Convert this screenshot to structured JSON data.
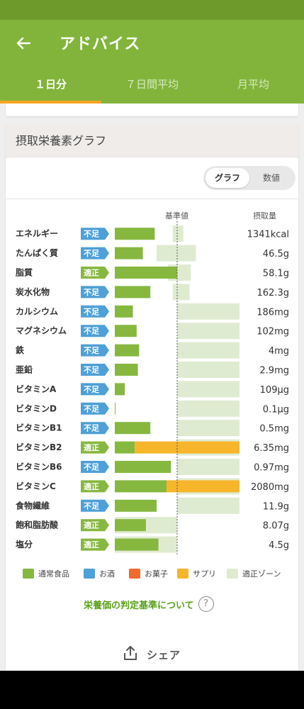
{
  "header": {
    "title": "アドバイス",
    "back_icon": "arrow-left-icon",
    "tabs": [
      {
        "label": "１日分",
        "active": true
      },
      {
        "label": "７日間平均",
        "active": false
      },
      {
        "label": "月平均",
        "active": false
      }
    ]
  },
  "card": {
    "title": "摂取栄養素グラフ",
    "toggle": {
      "options": [
        "グラフ",
        "数値"
      ],
      "selected": "グラフ"
    },
    "column_reference": "基準値",
    "column_intake": "摂取量"
  },
  "colors": {
    "regular_food": "#86b840",
    "alcohol": "#4ea0d8",
    "snacks": "#f06a2c",
    "supplement": "#f7b52c",
    "proper_zone": "#dfebd1",
    "status_shortage": "#4ea0d8",
    "status_proper": "#86b840"
  },
  "chart_data": {
    "type": "bar",
    "orientation": "horizontal",
    "reference_label": "基準値",
    "intake_label": "摂取量",
    "rows": [
      {
        "name": "エネルギー",
        "status": "不足",
        "food": 0.64,
        "supplement": 0,
        "zone": [
          0.93,
          1.1
        ],
        "intake": "1341kcal"
      },
      {
        "name": "たんぱく質",
        "status": "不足",
        "food": 0.45,
        "supplement": 0,
        "zone": [
          0.67,
          1.3
        ],
        "intake": "46.5g"
      },
      {
        "name": "脂質",
        "status": "適正",
        "food": 1.0,
        "supplement": 0,
        "zone": [
          0.85,
          1.22
        ],
        "intake": "58.1g"
      },
      {
        "name": "炭水化物",
        "status": "不足",
        "food": 0.57,
        "supplement": 0,
        "zone": [
          0.93,
          1.2
        ],
        "intake": "162.3g"
      },
      {
        "name": "カルシウム",
        "status": "不足",
        "food": 0.29,
        "supplement": 0,
        "zone": [
          1.0,
          2.0
        ],
        "intake": "186mg"
      },
      {
        "name": "マグネシウム",
        "status": "不足",
        "food": 0.35,
        "supplement": 0,
        "zone": [
          1.0,
          2.0
        ],
        "intake": "102mg"
      },
      {
        "name": "鉄",
        "status": "不足",
        "food": 0.39,
        "supplement": 0,
        "zone": [
          1.0,
          2.0
        ],
        "intake": "4mg"
      },
      {
        "name": "亜鉛",
        "status": "不足",
        "food": 0.37,
        "supplement": 0,
        "zone": [
          1.0,
          2.0
        ],
        "intake": "2.9mg"
      },
      {
        "name": "ビタミンA",
        "status": "不足",
        "food": 0.16,
        "supplement": 0,
        "zone": [
          1.0,
          2.0
        ],
        "intake": "109μg"
      },
      {
        "name": "ビタミンD",
        "status": "不足",
        "food": 0.01,
        "supplement": 0,
        "zone": [
          1.0,
          2.0
        ],
        "intake": "0.1μg"
      },
      {
        "name": "ビタミンB1",
        "status": "不足",
        "food": 0.57,
        "supplement": 0,
        "zone": [
          1.0,
          2.0
        ],
        "intake": "0.5mg"
      },
      {
        "name": "ビタミンB2",
        "status": "適正",
        "food": 0.32,
        "supplement": 1.68,
        "zone": [
          1.0,
          2.0
        ],
        "intake": "6.35mg"
      },
      {
        "name": "ビタミンB6",
        "status": "不足",
        "food": 0.9,
        "supplement": 0,
        "zone": [
          1.0,
          2.0
        ],
        "intake": "0.97mg"
      },
      {
        "name": "ビタミンC",
        "status": "適正",
        "food": 0.83,
        "supplement": 1.17,
        "zone": [
          1.0,
          2.0
        ],
        "intake": "2080mg"
      },
      {
        "name": "食物繊維",
        "status": "不足",
        "food": 0.67,
        "supplement": 0,
        "zone": [
          1.0,
          2.0
        ],
        "intake": "11.9g"
      },
      {
        "name": "飽和脂肪酸",
        "status": "適正",
        "food": 0.5,
        "supplement": 0,
        "zone": [
          0.0,
          1.0
        ],
        "intake": "8.07g"
      },
      {
        "name": "塩分",
        "status": "適正",
        "food": 0.7,
        "supplement": 0,
        "zone": [
          0.0,
          1.0
        ],
        "intake": "4.5g"
      }
    ],
    "legend": [
      {
        "label": "通常食品",
        "color": "#86b840"
      },
      {
        "label": "お酒",
        "color": "#4ea0d8"
      },
      {
        "label": "お菓子",
        "color": "#f06a2c"
      },
      {
        "label": "サプリ",
        "color": "#f7b52c"
      },
      {
        "label": "適正ゾーン",
        "color": "#dfebd1"
      }
    ]
  },
  "footer": {
    "criteria_link": "栄養価の判定基準について",
    "help_icon": "question-circle-icon",
    "share_label": "シェア",
    "share_icon": "share-upload-icon"
  }
}
